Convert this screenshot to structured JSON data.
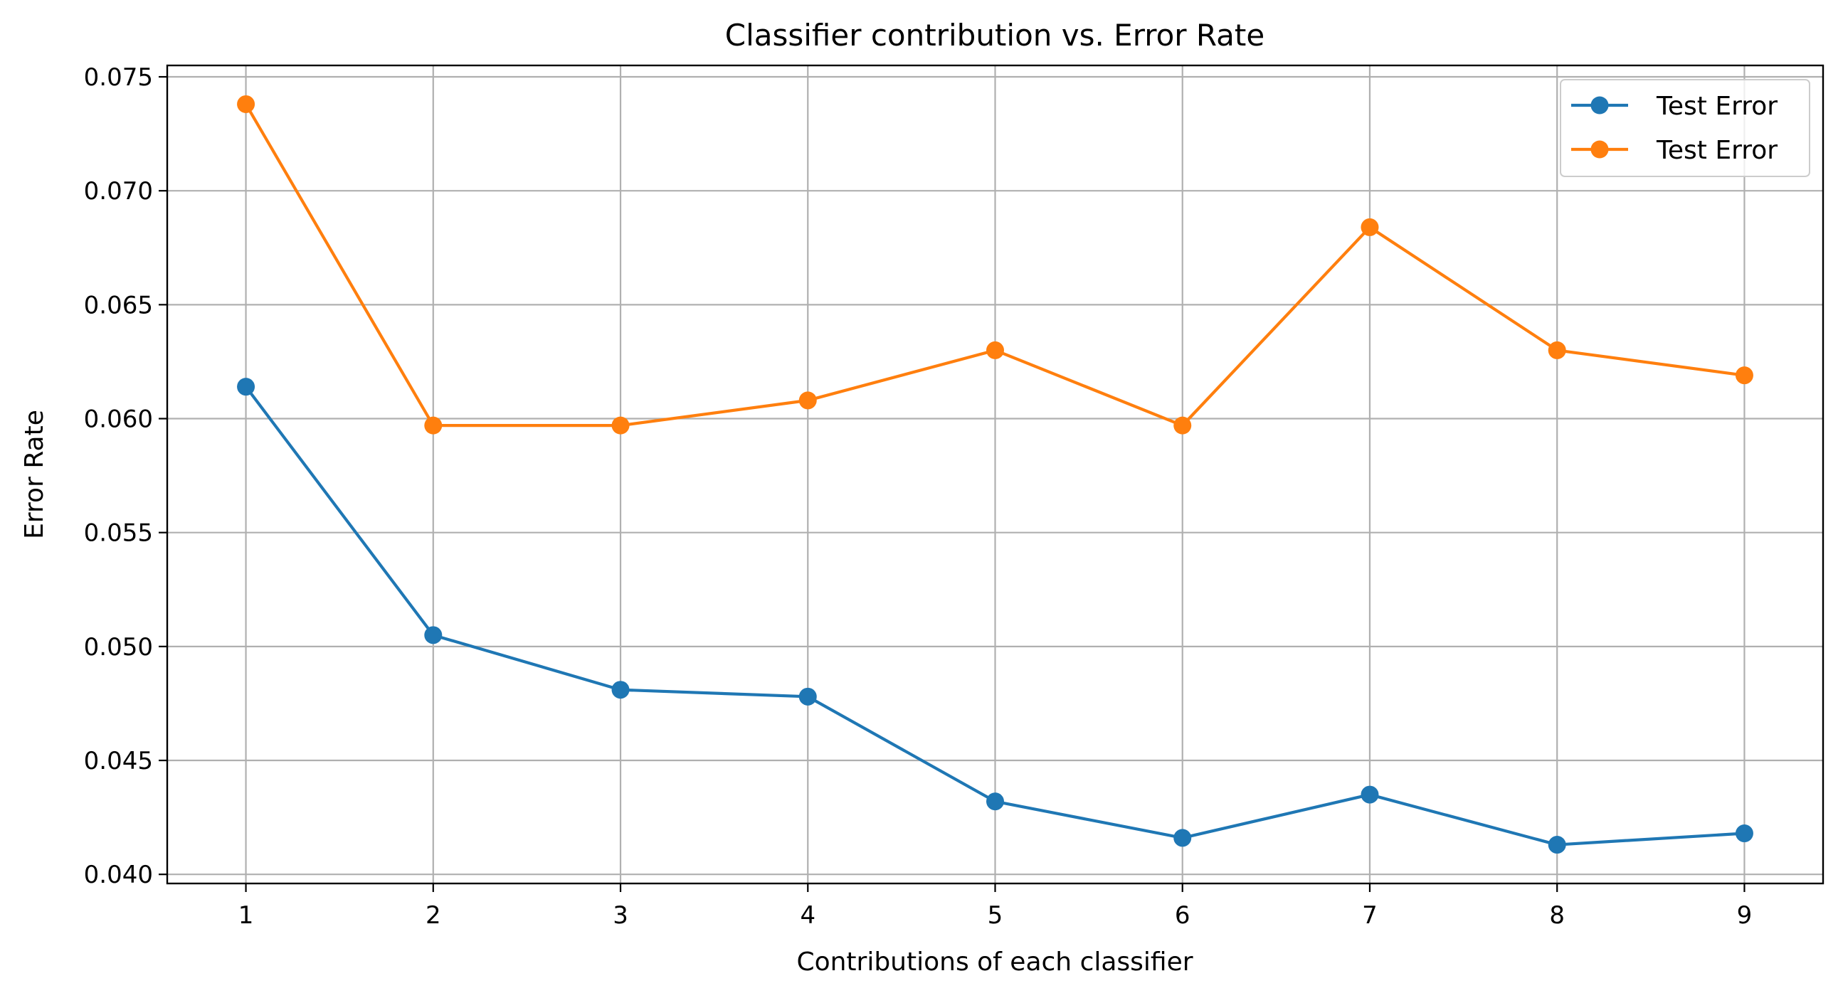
{
  "chart_data": {
    "type": "line",
    "title": "Classifier contribution vs. Error Rate",
    "xlabel": "Contributions of each classifier",
    "ylabel": "Error Rate",
    "x": [
      1,
      2,
      3,
      4,
      5,
      6,
      7,
      8,
      9
    ],
    "x_ticks": [
      "1",
      "2",
      "3",
      "4",
      "5",
      "6",
      "7",
      "8",
      "9"
    ],
    "y_ticks": [
      "0.040",
      "0.045",
      "0.050",
      "0.055",
      "0.060",
      "0.065",
      "0.070",
      "0.075"
    ],
    "xlim": [
      0.58,
      9.42
    ],
    "ylim": [
      0.0396,
      0.0755
    ],
    "grid": true,
    "legend_position": "top-right",
    "series": [
      {
        "name": "Test Error",
        "color": "#1f77b4",
        "marker": "circle",
        "values": [
          0.0614,
          0.0505,
          0.0481,
          0.0478,
          0.0432,
          0.0416,
          0.0435,
          0.0413,
          0.0418
        ]
      },
      {
        "name": "Test Error",
        "color": "#ff7f0e",
        "marker": "circle",
        "values": [
          0.0738,
          0.0597,
          0.0597,
          0.0608,
          0.063,
          0.0597,
          0.0684,
          0.063,
          0.0619
        ]
      }
    ]
  }
}
